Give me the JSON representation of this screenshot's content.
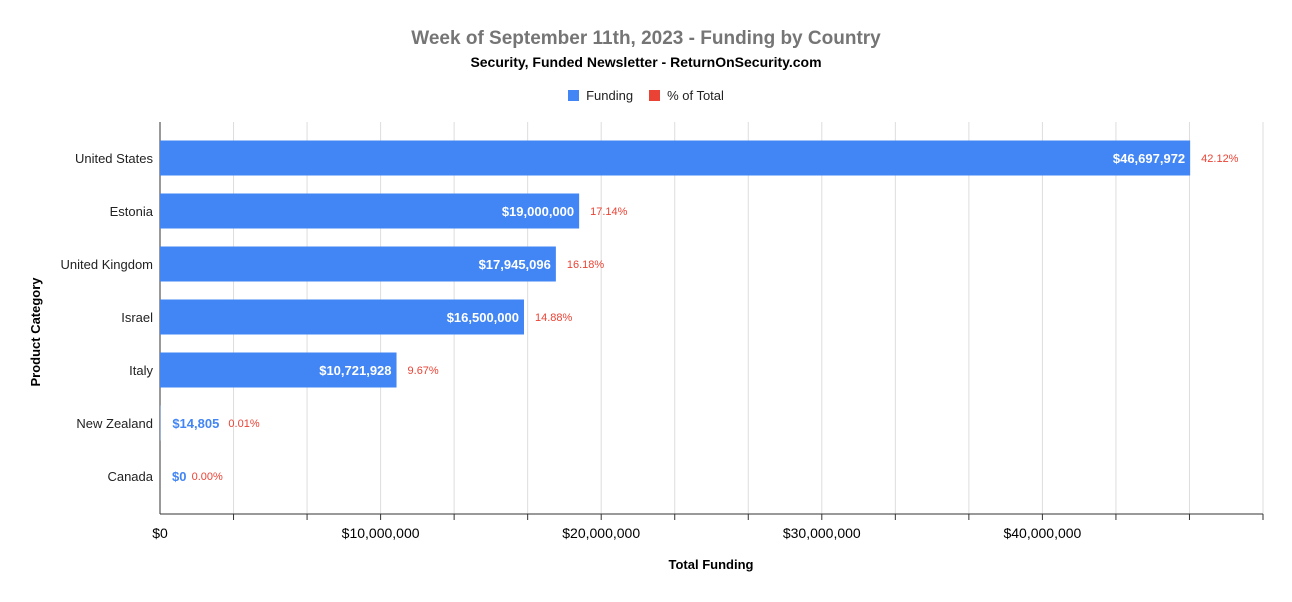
{
  "chart_data": {
    "type": "bar",
    "orientation": "horizontal",
    "title": "Week of September 11th, 2023 - Funding by Country",
    "subtitle": "Security, Funded Newsletter - ReturnOnSecurity.com",
    "xlabel": "Total Funding",
    "ylabel": "Product Category",
    "xlim": [
      0,
      50000000
    ],
    "x_ticks": [
      0,
      10000000,
      20000000,
      30000000,
      40000000
    ],
    "x_tick_labels": [
      "$0",
      "$10,000,000",
      "$20,000,000",
      "$30,000,000",
      "$40,000,000"
    ],
    "legend_position": "top",
    "grid": true,
    "categories": [
      "United States",
      "Estonia",
      "United Kingdom",
      "Israel",
      "Italy",
      "New Zealand",
      "Canada"
    ],
    "series": [
      {
        "name": "Funding",
        "color": "#4285f4",
        "values": [
          46697972,
          19000000,
          17945096,
          16500000,
          10721928,
          14805,
          0
        ],
        "labels": [
          "$46,697,972",
          "$19,000,000",
          "$17,945,096",
          "$16,500,000",
          "$10,721,928",
          "$14,805",
          "$0"
        ]
      },
      {
        "name": "% of Total",
        "color": "#ea4335",
        "values": [
          42.12,
          17.14,
          16.18,
          14.88,
          9.67,
          0.01,
          0.0
        ],
        "labels": [
          "42.12%",
          "17.14%",
          "16.18%",
          "14.88%",
          "9.67%",
          "0.01%",
          "0.00%"
        ]
      }
    ]
  }
}
